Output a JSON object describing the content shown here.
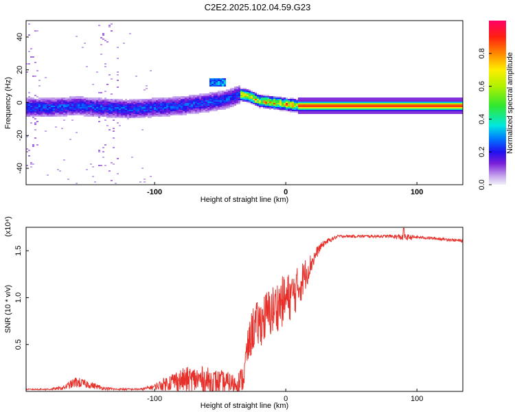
{
  "figure": {
    "title": "C2E2.2025.102.04.59.G23"
  },
  "chart_data": [
    {
      "type": "heatmap",
      "xlabel": "Height of straight line (km)",
      "ylabel": "Frequency (Hz)",
      "xlim": [
        -198,
        135
      ],
      "ylim": [
        -50,
        50
      ],
      "xticks": [
        -100,
        0,
        100
      ],
      "yticks": [
        -40,
        -20,
        0,
        20,
        40
      ],
      "colorbar": {
        "label": "Normalized spectral amplitude",
        "range": [
          0.0,
          1.0
        ],
        "ticks": [
          0.0,
          0.2,
          0.4,
          0.6,
          0.8
        ]
      },
      "ridge": {
        "x": [
          -198,
          -180,
          -160,
          -140,
          -120,
          -100,
          -80,
          -60,
          -45,
          -35,
          -28,
          -20,
          -10,
          0,
          10,
          40,
          80,
          135
        ],
        "f": [
          -3,
          -3,
          -2,
          -3,
          -4,
          -3,
          -2,
          0,
          2,
          5,
          4,
          1,
          0,
          -1,
          -2,
          -2,
          -2,
          -2
        ]
      },
      "side_band": {
        "x": [
          -58,
          -46
        ],
        "f": [
          10,
          15
        ]
      }
    },
    {
      "type": "line",
      "xlabel": "Height of straight line (km)",
      "ylabel": "SNR (10 * v/v)",
      "y_multiplier_label": "(x10⁴)",
      "xlim": [
        -198,
        135
      ],
      "ylim": [
        0,
        1.75
      ],
      "xticks": [
        -100,
        0,
        100
      ],
      "yticks": [
        0.5,
        1.0,
        1.5
      ],
      "ytick_labels": [
        "0.5",
        "1.0",
        "1.5"
      ],
      "color": "#e8302a",
      "envelope": {
        "x": [
          -198,
          -180,
          -170,
          -160,
          -150,
          -140,
          -130,
          -110,
          -100,
          -95,
          -85,
          -75,
          -65,
          -55,
          -45,
          -38,
          -32,
          -30,
          -25,
          -20,
          -15,
          -10,
          -5,
          0,
          5,
          10,
          15,
          20,
          25,
          30,
          40,
          60,
          80,
          90,
          100,
          120,
          135
        ],
        "base": [
          0.02,
          0.02,
          0.03,
          0.08,
          0.06,
          0.03,
          0.02,
          0.02,
          0.04,
          0.05,
          0.08,
          0.08,
          0.08,
          0.06,
          0.05,
          0.05,
          0.1,
          0.35,
          0.6,
          0.65,
          0.72,
          0.78,
          0.85,
          0.9,
          0.95,
          1.05,
          1.2,
          1.35,
          1.5,
          1.58,
          1.65,
          1.65,
          1.65,
          1.63,
          1.64,
          1.62,
          1.6
        ],
        "amp": [
          0.01,
          0.02,
          0.04,
          0.12,
          0.08,
          0.04,
          0.02,
          0.02,
          0.06,
          0.12,
          0.22,
          0.28,
          0.3,
          0.28,
          0.25,
          0.2,
          0.3,
          0.35,
          0.5,
          0.5,
          0.55,
          0.55,
          0.55,
          0.55,
          0.5,
          0.45,
          0.35,
          0.2,
          0.1,
          0.06,
          0.03,
          0.03,
          0.03,
          0.08,
          0.03,
          0.03,
          0.03
        ]
      },
      "peak": {
        "x": 90,
        "y": 1.74
      }
    }
  ]
}
